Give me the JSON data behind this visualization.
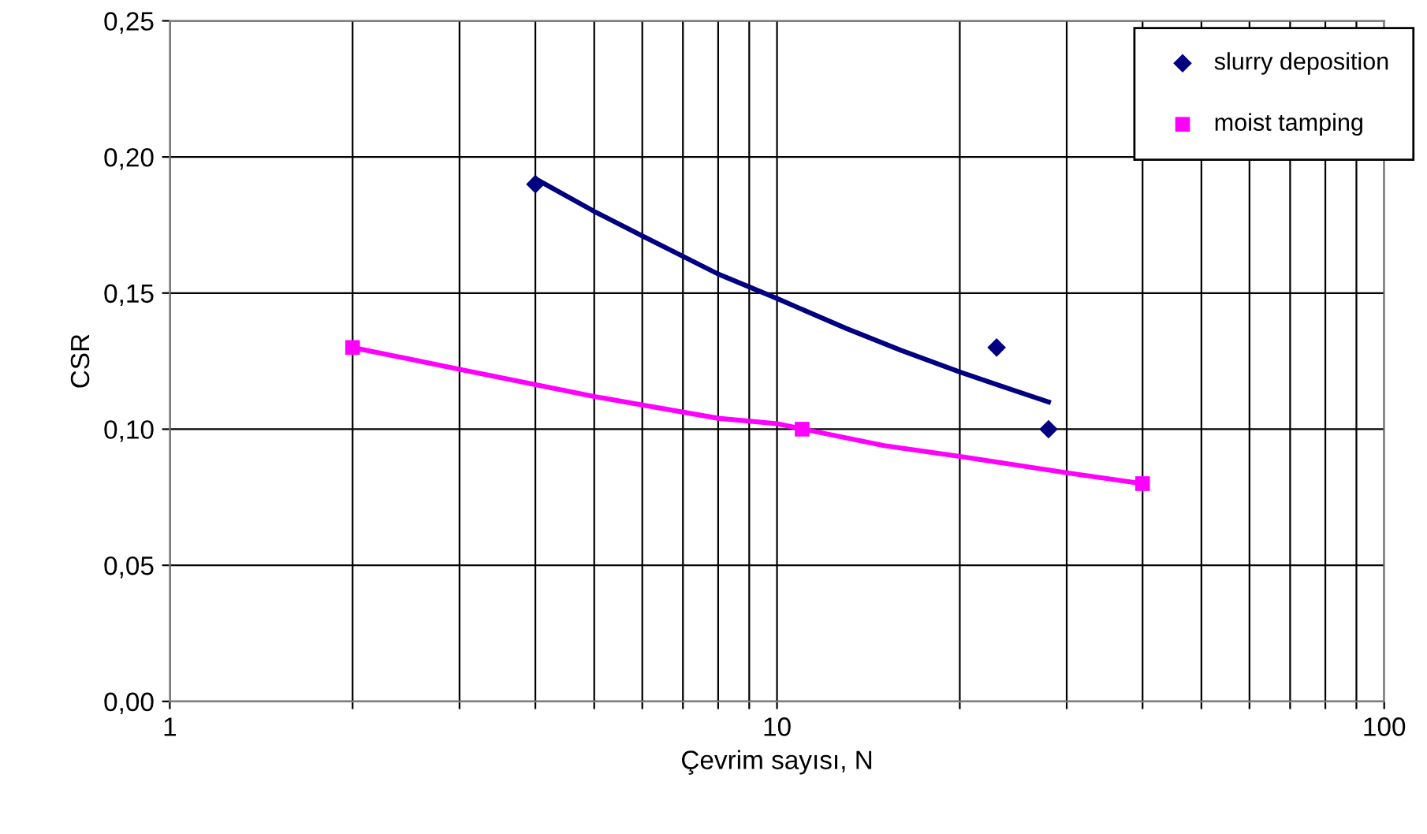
{
  "chart_data": {
    "type": "scatter",
    "xlabel": "Çevrim sayısı, N",
    "ylabel": "CSR",
    "log": "x",
    "xlim": [
      1,
      100
    ],
    "ylim": [
      0,
      0.25
    ],
    "xticks": [
      1,
      {
        "value": 2,
        "label": null
      },
      {
        "value": 3,
        "label": null
      },
      {
        "value": 4,
        "label": null
      },
      {
        "value": 5,
        "label": null
      },
      {
        "value": 6,
        "label": null
      },
      {
        "value": 7,
        "label": null
      },
      {
        "value": 8,
        "label": null
      },
      {
        "value": 9,
        "label": null
      },
      10,
      {
        "value": 20,
        "label": null
      },
      {
        "value": 30,
        "label": null
      },
      {
        "value": 40,
        "label": null
      },
      {
        "value": 50,
        "label": null
      },
      {
        "value": 60,
        "label": null
      },
      {
        "value": 70,
        "label": null
      },
      {
        "value": 80,
        "label": null
      },
      {
        "value": 90,
        "label": null
      },
      100
    ],
    "yticks": [
      {
        "value": 0,
        "label": "0,00"
      },
      {
        "value": 0.05,
        "label": "0,05"
      },
      {
        "value": 0.1,
        "label": "0,10"
      },
      {
        "value": 0.15,
        "label": "0,15"
      },
      {
        "value": 0.2,
        "label": "0,20"
      },
      {
        "value": 0.25,
        "label": "0,25"
      }
    ],
    "grid": true,
    "legend": "top right",
    "series": [
      {
        "name": "slurry deposition",
        "marker": "diamond",
        "color": "#000080",
        "x": [
          4,
          23,
          28
        ],
        "values": [
          0.19,
          0.13,
          0.1
        ]
      },
      {
        "name": "moist tamping",
        "marker": "square",
        "color": "#ff00ff",
        "x": [
          2,
          11,
          40
        ],
        "values": [
          0.13,
          0.1,
          0.08
        ]
      },
      {
        "type": "line",
        "color": "#000080",
        "x": [
          4,
          5,
          6,
          8,
          10,
          13,
          16,
          20,
          24,
          28
        ],
        "values": [
          0.192,
          0.18,
          0.171,
          0.157,
          0.148,
          0.137,
          0.129,
          0.121,
          0.115,
          0.11
        ]
      },
      {
        "type": "line",
        "color": "#ff00ff",
        "x": [
          2,
          3,
          5,
          8,
          10,
          15,
          20,
          30,
          40
        ],
        "values": [
          0.13,
          0.122,
          0.112,
          0.104,
          0.102,
          0.094,
          0.09,
          0.084,
          0.08
        ]
      }
    ]
  }
}
